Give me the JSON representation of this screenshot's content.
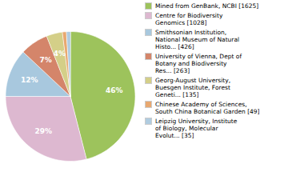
{
  "chart_data": {
    "type": "pie",
    "categories": [
      "Mined from GenBank, NCBI [1625]",
      "Centre for Biodiversity\nGenomics [1028]",
      "Smithsonian Institution,\nNational Museum of Natural\nHisto... [426]",
      "University of Vienna, Dept of\nBotany and Biodiversity\nRes... [263]",
      "Georg-August University,\nBuesgen Institute, Forest\nGeneti... [135]",
      "Chinese Academy of Sciences,\nSouth China Botanical Garden [49]",
      "Leipzig University, Institute\nof Biology, Molecular\nEvolut... [35]"
    ],
    "values": [
      46,
      29,
      12,
      7,
      4,
      1,
      1
    ],
    "value_labels": [
      "46%",
      "29%",
      "12%",
      "7%",
      "4%",
      null,
      null
    ],
    "colors": [
      "#9dc35c",
      "#ddb8d0",
      "#a8c8de",
      "#d4856a",
      "#d4cf88",
      "#e8a870",
      "#b0cce0"
    ],
    "data_labels": true,
    "legend": "right"
  }
}
